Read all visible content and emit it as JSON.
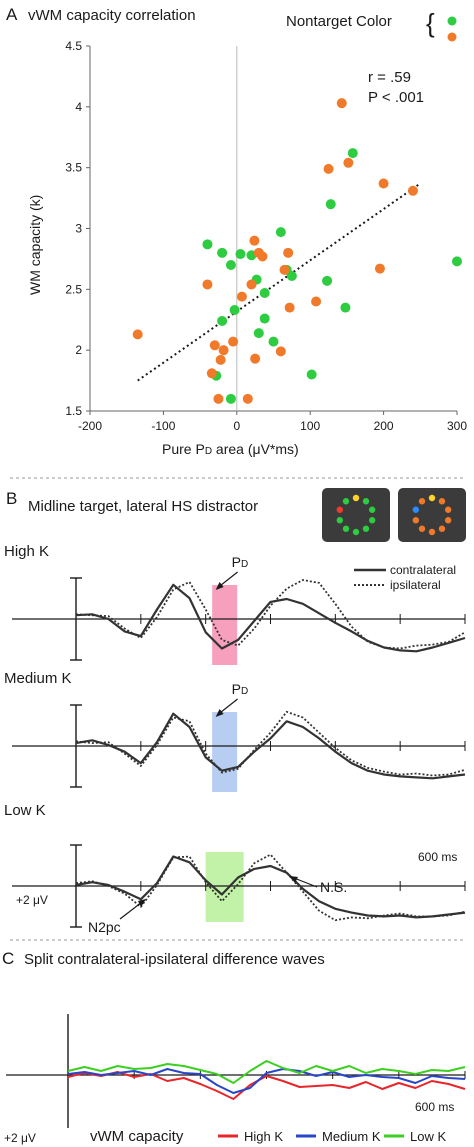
{
  "chart_data": [
    {
      "panel": "A",
      "type": "scatter",
      "title": "vWM capacity correlation",
      "xlabel": "Pure PD area (μV*ms)",
      "xlabel_main": "Pure P",
      "xlabel_sub": "D",
      "xlabel_rest": " area (μV*ms)",
      "ylabel": "WM capacity (k)",
      "xlim": [
        -200,
        300
      ],
      "ylim": [
        1.5,
        4.5
      ],
      "xticks": [
        "-200",
        "-100",
        "0",
        "100",
        "200",
        "300"
      ],
      "yticks": [
        "1.5",
        "2",
        "2.5",
        "3",
        "3.5",
        "4",
        "4.5"
      ],
      "grid": false,
      "legend": {
        "title": "Nontarget Color",
        "placement": "top-right",
        "colors": [
          "#2ecc40",
          "#f07a2a"
        ]
      },
      "stats": {
        "r": "r = .59",
        "p": "P < .001"
      },
      "trendline": {
        "style": "dotted",
        "x": [
          -135,
          250
        ],
        "y": [
          1.75,
          3.37
        ]
      },
      "series": [
        {
          "color": "#2ecc40",
          "points": [
            [
              -40,
              2.87
            ],
            [
              -20,
              2.8
            ],
            [
              -8,
              2.7
            ],
            [
              -20,
              2.24
            ],
            [
              -3,
              2.33
            ],
            [
              -28,
              1.79
            ],
            [
              -8,
              1.6
            ],
            [
              5,
              2.79
            ],
            [
              20,
              2.78
            ],
            [
              27,
              2.58
            ],
            [
              38,
              2.47
            ],
            [
              38,
              2.26
            ],
            [
              30,
              2.14
            ],
            [
              50,
              2.07
            ],
            [
              60,
              2.97
            ],
            [
              68,
              2.66
            ],
            [
              75,
              2.61
            ],
            [
              102,
              1.8
            ],
            [
              123,
              2.57
            ],
            [
              128,
              3.2
            ],
            [
              148,
              2.35
            ],
            [
              158,
              3.62
            ],
            [
              300,
              2.73
            ]
          ]
        },
        {
          "color": "#f07a2a",
          "points": [
            [
              -135,
              2.13
            ],
            [
              -40,
              2.54
            ],
            [
              -34,
              1.81
            ],
            [
              -30,
              2.04
            ],
            [
              -25,
              1.6
            ],
            [
              -22,
              1.92
            ],
            [
              -18,
              2.0
            ],
            [
              -5,
              2.07
            ],
            [
              7,
              2.44
            ],
            [
              15,
              1.6
            ],
            [
              20,
              2.54
            ],
            [
              24,
              2.9
            ],
            [
              25,
              1.93
            ],
            [
              30,
              2.8
            ],
            [
              35,
              2.77
            ],
            [
              60,
              1.99
            ],
            [
              65,
              2.66
            ],
            [
              70,
              2.8
            ],
            [
              72,
              2.35
            ],
            [
              108,
              2.4
            ],
            [
              125,
              3.49
            ],
            [
              143,
              4.03
            ],
            [
              152,
              3.54
            ],
            [
              195,
              2.67
            ],
            [
              200,
              3.37
            ],
            [
              240,
              3.31
            ]
          ]
        }
      ]
    },
    {
      "panel": "B",
      "type": "line",
      "title": "Midline target, lateral HS distractor",
      "legend": {
        "placement": "top-right",
        "entries": [
          "contralateral",
          "ipsilateral"
        ]
      },
      "scale_labels": {
        "amplitude": "+2 μV",
        "time": "600 ms"
      },
      "x": [
        0,
        25,
        50,
        75,
        100,
        125,
        150,
        175,
        200,
        225,
        250,
        275,
        300,
        325,
        350,
        375,
        400,
        425,
        450,
        475,
        500,
        525,
        550,
        575,
        600
      ],
      "rows": [
        {
          "label": "High K",
          "component": "PD",
          "component_main": "P",
          "component_sub": "D",
          "window_color": "#f48fb1",
          "series": [
            {
              "name": "contralateral",
              "values": [
                0.4,
                0.5,
                0.0,
                -1.3,
                -1.8,
                1.0,
                3.6,
                2.2,
                -1.4,
                -3.1,
                -2.2,
                -0.2,
                1.8,
                2.1,
                1.6,
                0.6,
                -0.4,
                -1.3,
                -2.3,
                -3.0,
                -3.3,
                -3.4,
                -3.0,
                -2.5,
                -2.0
              ]
            },
            {
              "name": "ipsilateral",
              "values": [
                0.5,
                0.4,
                0.3,
                -1.0,
                -2.0,
                0.2,
                3.1,
                3.9,
                1.0,
                -2.2,
                -2.8,
                -1.0,
                1.4,
                3.2,
                4.1,
                3.8,
                1.6,
                -0.8,
                -2.4,
                -3.0,
                -3.1,
                -2.8,
                -2.7,
                -2.4,
                -1.4
              ]
            }
          ]
        },
        {
          "label": "Medium K",
          "component": "PD",
          "component_main": "P",
          "component_sub": "D",
          "window_color": "#aac4ef",
          "series": [
            {
              "name": "contralateral",
              "values": [
                0.3,
                0.6,
                0.1,
                -0.6,
                -1.8,
                0.4,
                3.4,
                2.0,
                -1.2,
                -2.6,
                -2.2,
                -0.6,
                0.8,
                2.6,
                2.0,
                0.8,
                -0.6,
                -1.8,
                -2.6,
                -3.0,
                -3.2,
                -3.3,
                -3.4,
                -3.2,
                -3.0
              ]
            },
            {
              "name": "ipsilateral",
              "values": [
                0.5,
                0.3,
                0.4,
                -0.8,
                -2.1,
                0.1,
                3.0,
                2.6,
                -0.8,
                -2.8,
                -2.4,
                -0.4,
                1.4,
                3.6,
                3.0,
                1.4,
                -0.2,
                -1.5,
                -2.3,
                -2.7,
                -3.0,
                -2.9,
                -3.1,
                -3.0,
                -2.5
              ]
            }
          ]
        },
        {
          "label": "Low K",
          "component": "N2pc",
          "component_main": "N2pc",
          "component_sub": "",
          "window_color": "#b7ef99",
          "series": [
            {
              "name": "contralateral",
              "values": [
                0.1,
                0.4,
                0.1,
                -0.6,
                -1.4,
                0.3,
                3.1,
                2.5,
                0.6,
                -0.9,
                0.9,
                1.8,
                2.1,
                1.4,
                -0.3,
                -1.6,
                -2.4,
                -2.8,
                -3.1,
                -3.2,
                -3.1,
                -3.3,
                -3.2,
                -3.0,
                -2.8
              ]
            },
            {
              "name": "ipsilateral",
              "values": [
                0.3,
                0.5,
                0.0,
                -0.8,
                -2.2,
                0.1,
                3.0,
                3.1,
                0.4,
                -1.6,
                0.2,
                2.4,
                3.3,
                1.4,
                -0.6,
                -2.6,
                -3.6,
                -3.3,
                -3.4,
                -3.1,
                -2.9,
                -3.2,
                -3.2,
                -3.1,
                -2.7
              ]
            }
          ]
        }
      ],
      "annotations": [
        "N.S."
      ]
    },
    {
      "panel": "C",
      "type": "line",
      "title": "Split contralateral-ipsilateral difference waves",
      "legend": {
        "title": "vWM capacity",
        "placement": "bottom"
      },
      "scale_labels": {
        "amplitude": "+2 μV",
        "time": "600 ms"
      },
      "x": [
        0,
        25,
        50,
        75,
        100,
        125,
        150,
        175,
        200,
        225,
        250,
        275,
        300,
        325,
        350,
        375,
        400,
        425,
        450,
        475,
        500,
        525,
        550,
        575,
        600
      ],
      "series": [
        {
          "name": "High K",
          "color": "#e8262a",
          "values": [
            -0.2,
            0.2,
            -0.1,
            0.3,
            -0.2,
            0.1,
            -0.6,
            -0.3,
            -0.9,
            -1.6,
            -2.4,
            -1.0,
            -0.1,
            -0.6,
            -1.2,
            -1.1,
            -1.0,
            -1.3,
            -0.7,
            -1.4,
            -0.8,
            -1.3,
            -0.6,
            -0.9,
            -1.4
          ]
        },
        {
          "name": "Medium K",
          "color": "#2a46c8",
          "values": [
            0.1,
            0.3,
            0.0,
            0.2,
            0.4,
            0.0,
            0.6,
            0.2,
            0.1,
            -1.0,
            -1.8,
            -1.3,
            0.2,
            0.6,
            0.4,
            -0.1,
            0.3,
            -0.2,
            0.0,
            -0.2,
            -0.3,
            -0.8,
            -0.1,
            -0.3,
            -0.4
          ]
        },
        {
          "name": "Low K",
          "color": "#3ccf22",
          "values": [
            0.4,
            0.8,
            0.4,
            0.9,
            0.6,
            0.7,
            1.1,
            0.9,
            0.5,
            0.1,
            -0.8,
            0.4,
            1.4,
            0.7,
            0.2,
            0.9,
            0.4,
            0.9,
            0.2,
            0.6,
            0.4,
            0.1,
            0.5,
            0.4,
            0.8
          ]
        }
      ]
    }
  ],
  "panels": {
    "a": "A",
    "b": "B",
    "c": "C"
  },
  "colors": {
    "green": "#2ecc40",
    "orange": "#f07a2a",
    "red": "#ee3b2a",
    "yellow": "#ffd42a",
    "blue": "#2a8cff",
    "box": "#3b3b3b"
  }
}
